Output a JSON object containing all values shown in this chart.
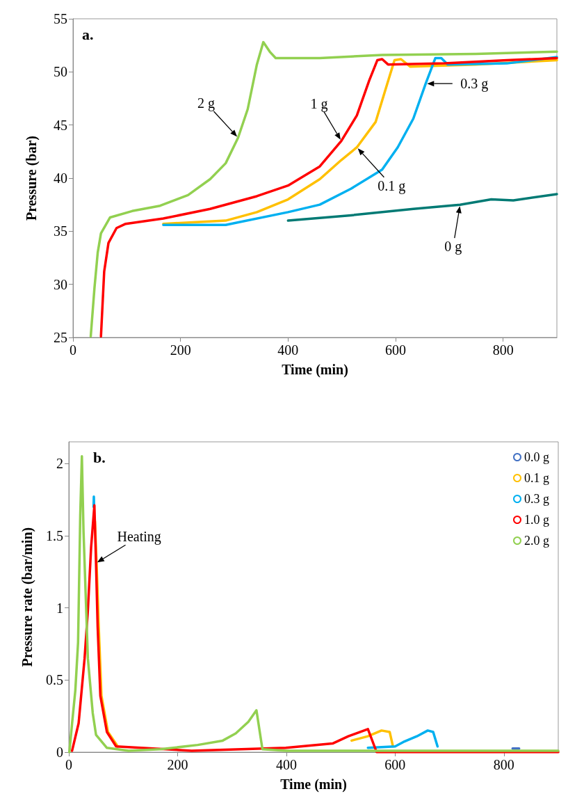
{
  "chart_data": [
    {
      "type": "line",
      "title": "a.",
      "xlabel": "Time (min)",
      "ylabel": "Pressure (bar)",
      "xlim": [
        0,
        900
      ],
      "xticks": [
        0,
        200,
        400,
        600,
        800
      ],
      "ylim": [
        25,
        55
      ],
      "yticks": [
        25,
        30,
        35,
        40,
        45,
        50,
        55
      ],
      "grid": false,
      "legend": false,
      "marker": "none",
      "series": [
        {
          "color": "#007a74",
          "x": [
            400,
            517,
            633,
            720,
            778,
            819,
            900
          ],
          "values": [
            36.0,
            36.5,
            37.1,
            37.5,
            38.0,
            37.9,
            38.5
          ]
        },
        {
          "color": "#ffc000",
          "x": [
            168,
            284,
            342,
            400,
            459,
            499,
            528,
            563,
            581,
            598,
            610,
            627,
            749,
            900
          ],
          "values": [
            35.7,
            36.0,
            36.8,
            38.0,
            39.9,
            41.7,
            42.9,
            45.3,
            48.3,
            51.1,
            51.2,
            50.5,
            50.7,
            51.1
          ]
        },
        {
          "color": "#00b0f0",
          "x": [
            168,
            284,
            400,
            459,
            517,
            575,
            604,
            633,
            656,
            674,
            685,
            697,
            807,
            900
          ],
          "values": [
            35.6,
            35.6,
            36.8,
            37.5,
            39.0,
            40.8,
            42.9,
            45.6,
            48.9,
            51.3,
            51.3,
            50.7,
            50.8,
            51.4
          ]
        },
        {
          "color": "#ff0000",
          "x": [
            52,
            58,
            66,
            81,
            98,
            168,
            255,
            342,
            400,
            459,
            499,
            528,
            551,
            566,
            575,
            586,
            691,
            807,
            900
          ],
          "values": [
            25.1,
            31.2,
            33.9,
            35.3,
            35.7,
            36.2,
            37.1,
            38.3,
            39.3,
            41.1,
            43.5,
            45.9,
            49.2,
            51.1,
            51.2,
            50.7,
            50.8,
            51.1,
            51.3
          ]
        },
        {
          "color": "#92d050",
          "x": [
            33,
            40,
            46,
            52,
            69,
            110,
            162,
            214,
            255,
            284,
            307,
            325,
            342,
            354,
            366,
            377,
            459,
            575,
            749,
            900
          ],
          "values": [
            25.1,
            29.7,
            33.0,
            34.8,
            36.3,
            36.9,
            37.4,
            38.4,
            39.9,
            41.4,
            43.8,
            46.5,
            50.7,
            52.8,
            51.9,
            51.3,
            51.3,
            51.6,
            51.7,
            51.9
          ]
        }
      ],
      "annotations": [
        {
          "text": "2 g",
          "x": 307,
          "y": 43.8
        },
        {
          "text": "1 g",
          "x": 499,
          "y": 43.5
        },
        {
          "text": "0.1 g",
          "x": 528,
          "y": 42.9
        },
        {
          "text": "0.3 g",
          "x": 656,
          "y": 48.9
        },
        {
          "text": "0 g",
          "x": 720,
          "y": 37.5
        }
      ]
    },
    {
      "type": "line",
      "title": "b.",
      "xlabel": "Time (min)",
      "ylabel": "Pressure rate (bar/min)",
      "xlim": [
        0,
        900
      ],
      "xticks": [
        0,
        200,
        400,
        600,
        800
      ],
      "ylim": [
        0,
        2.15
      ],
      "yticks": [
        0,
        0.5,
        1,
        1.5,
        2
      ],
      "grid": false,
      "legend": "top right",
      "marker": "none",
      "series": [
        {
          "name": "0.0 g",
          "color": "#4472c4",
          "x": [
            816,
            828
          ],
          "values": [
            0.025,
            0.025
          ]
        },
        {
          "name": "0.1 g",
          "color": "#ffc000",
          "x": [
            48,
            51,
            55,
            60,
            72,
            90,
            null,
            520,
            550,
            575,
            590,
            596
          ],
          "values": [
            1.6,
            1.31,
            0.87,
            0.39,
            0.14,
            0.04,
            null,
            0.08,
            0.11,
            0.15,
            0.14,
            0.04
          ]
        },
        {
          "name": "0.3 g",
          "color": "#00b0f0",
          "x": [
            45.5,
            46,
            46.5,
            null,
            550,
            600,
            615,
            640,
            660,
            670,
            678
          ],
          "values": [
            1.7,
            1.77,
            1.7,
            null,
            0.03,
            0.04,
            0.07,
            0.11,
            0.15,
            0.14,
            0.04
          ]
        },
        {
          "name": "1.0 g",
          "color": "#ff0000",
          "x": [
            6,
            18,
            29,
            35,
            41,
            47,
            50,
            53,
            58,
            70,
            87,
            226,
            399,
            485,
            514,
            543,
            550,
            566,
            600,
            900
          ],
          "values": [
            0.01,
            0.2,
            0.65,
            0.98,
            1.42,
            1.71,
            1.31,
            0.87,
            0.39,
            0.14,
            0.04,
            0.01,
            0.03,
            0.06,
            0.11,
            0.15,
            0.16,
            0.0,
            0.0,
            0.0
          ]
        },
        {
          "name": "2.0 g",
          "color": "#92d050",
          "x": [
            1,
            6,
            12,
            17,
            19,
            21,
            24,
            27,
            31,
            35,
            44,
            50,
            70,
            110,
            168,
            237,
            283,
            307,
            330,
            345,
            356,
            400,
            900
          ],
          "values": [
            0.0,
            0.2,
            0.43,
            0.76,
            1.2,
            1.64,
            2.05,
            1.53,
            1.09,
            0.65,
            0.27,
            0.12,
            0.03,
            0.01,
            0.02,
            0.05,
            0.08,
            0.13,
            0.21,
            0.29,
            0.02,
            0.01,
            0.01
          ]
        }
      ],
      "annotations": [
        {
          "text": "Heating",
          "x": 50,
          "y": 1.31
        }
      ]
    }
  ]
}
